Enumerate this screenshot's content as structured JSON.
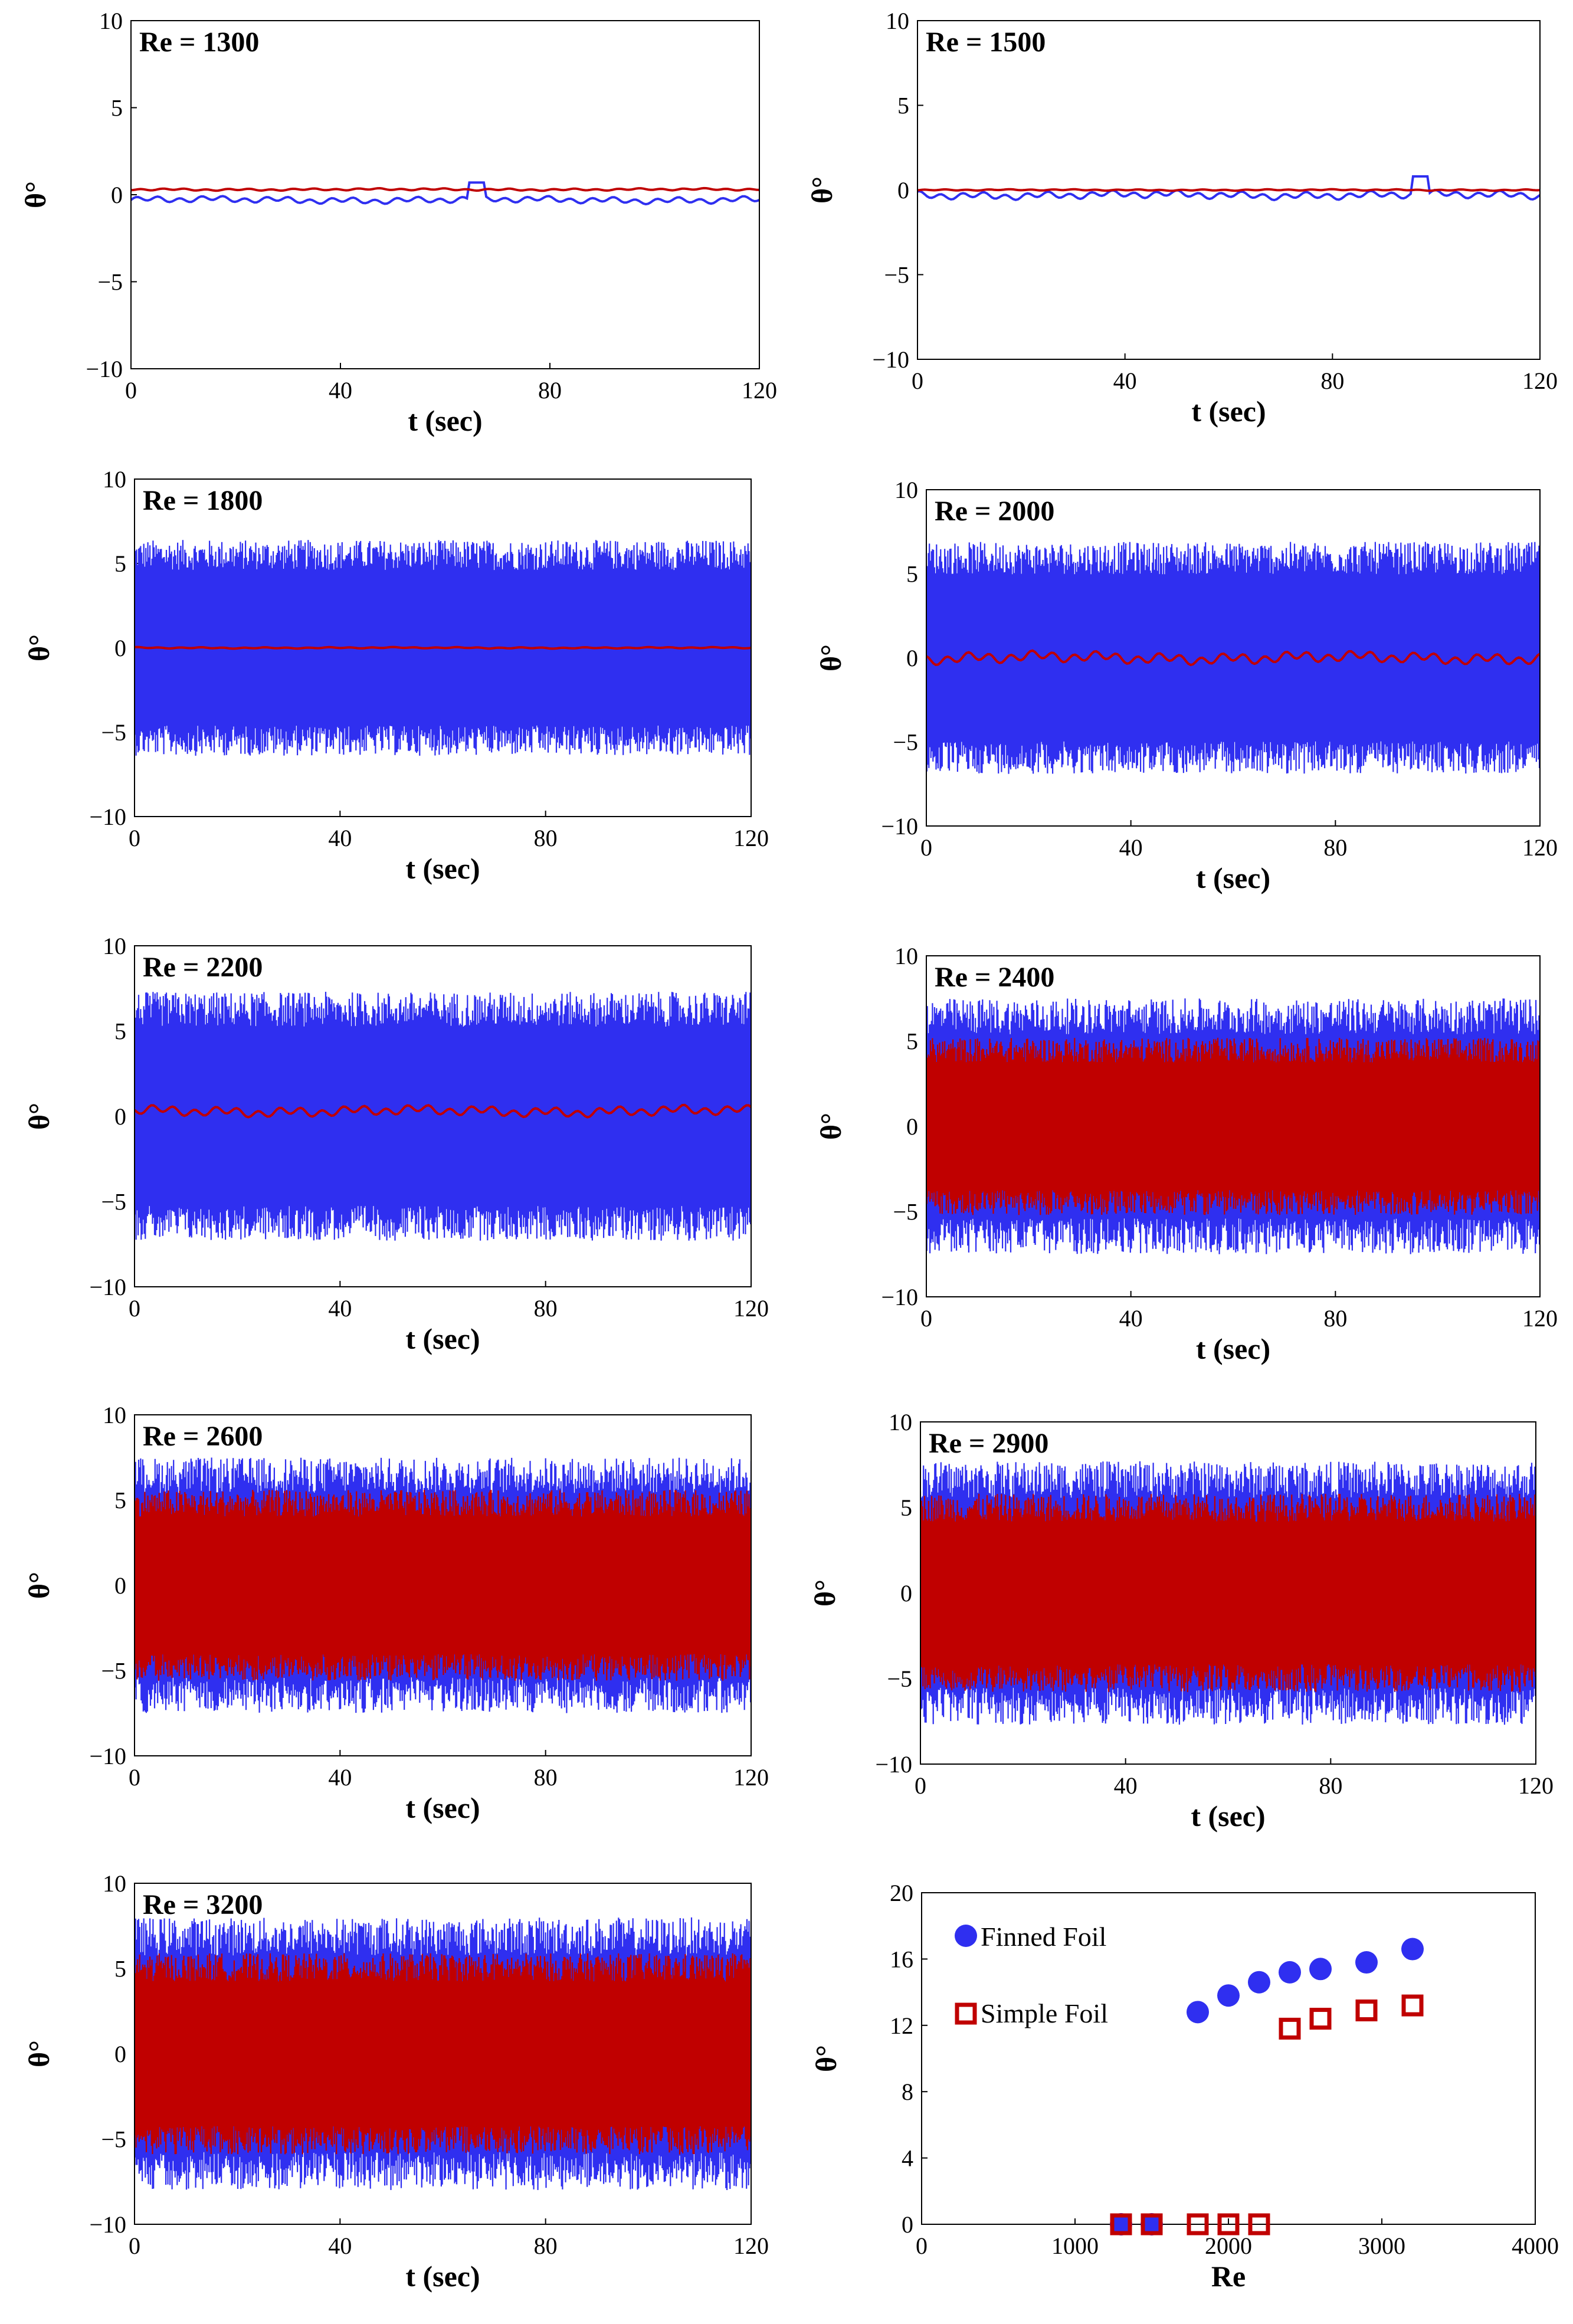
{
  "colors": {
    "finned": "#2f2ff0",
    "simple": "#c00000",
    "axis": "#000000"
  },
  "chart_data": [
    {
      "type": "line",
      "panel": "ts1",
      "title": "Re = 1300",
      "xlabel": "t (sec)",
      "ylabel": "θ°",
      "xlim": [
        0,
        120
      ],
      "ylim": [
        -10,
        10
      ],
      "xticks": [
        0,
        40,
        80,
        120
      ],
      "yticks": [
        -10,
        -5,
        0,
        5,
        10
      ],
      "series": [
        {
          "name": "Finned Foil",
          "color": "#2f2ff0",
          "mean": -0.3,
          "amp": 0.25,
          "spike_t": 66,
          "spike_v": 0.7
        },
        {
          "name": "Simple Foil",
          "color": "#c00000",
          "mean": 0.3,
          "amp": 0.08
        }
      ]
    },
    {
      "type": "line",
      "panel": "ts2",
      "title": "Re = 1500",
      "xlabel": "t (sec)",
      "ylabel": "θ°",
      "xlim": [
        0,
        120
      ],
      "ylim": [
        -10,
        10
      ],
      "xticks": [
        0,
        40,
        80,
        120
      ],
      "yticks": [
        -10,
        -5,
        0,
        5,
        10
      ],
      "series": [
        {
          "name": "Finned Foil",
          "color": "#2f2ff0",
          "mean": -0.3,
          "amp": 0.3,
          "spike_t": 97,
          "spike_v": 0.8
        },
        {
          "name": "Simple Foil",
          "color": "#c00000",
          "mean": 0.0,
          "amp": 0.05
        }
      ]
    },
    {
      "type": "line",
      "panel": "ts3",
      "title": "Re = 1800",
      "xlabel": "t (sec)",
      "ylabel": "θ°",
      "xlim": [
        0,
        120
      ],
      "ylim": [
        -10,
        10
      ],
      "xticks": [
        0,
        40,
        80,
        120
      ],
      "yticks": [
        -10,
        -5,
        0,
        5,
        10
      ],
      "series": [
        {
          "name": "Finned Foil",
          "color": "#2f2ff0",
          "mean": 0.0,
          "amp": 6.4
        },
        {
          "name": "Simple Foil",
          "color": "#c00000",
          "mean": 0.0,
          "amp": 0.05
        }
      ]
    },
    {
      "type": "line",
      "panel": "ts4",
      "title": "Re = 2000",
      "xlabel": "t (sec)",
      "ylabel": "θ°",
      "xlim": [
        0,
        120
      ],
      "ylim": [
        -10,
        10
      ],
      "xticks": [
        0,
        40,
        80,
        120
      ],
      "yticks": [
        -10,
        -5,
        0,
        5,
        10
      ],
      "series": [
        {
          "name": "Finned Foil",
          "color": "#2f2ff0",
          "mean": 0.0,
          "amp": 6.9
        },
        {
          "name": "Simple Foil",
          "color": "#c00000",
          "mean": 0.0,
          "amp": 0.45
        }
      ]
    },
    {
      "type": "line",
      "panel": "ts5",
      "title": "Re = 2200",
      "xlabel": "t (sec)",
      "ylabel": "θ°",
      "xlim": [
        0,
        120
      ],
      "ylim": [
        -10,
        10
      ],
      "xticks": [
        0,
        40,
        80,
        120
      ],
      "yticks": [
        -10,
        -5,
        0,
        5,
        10
      ],
      "series": [
        {
          "name": "Finned Foil",
          "color": "#2f2ff0",
          "mean": 0.0,
          "amp": 7.3
        },
        {
          "name": "Simple Foil",
          "color": "#c00000",
          "mean": 0.3,
          "amp": 0.4
        }
      ]
    },
    {
      "type": "line",
      "panel": "ts6",
      "title": "Re = 2400",
      "xlabel": "t (sec)",
      "ylabel": "θ°",
      "xlim": [
        0,
        120
      ],
      "ylim": [
        -10,
        10
      ],
      "xticks": [
        0,
        40,
        80,
        120
      ],
      "yticks": [
        -10,
        -5,
        0,
        5,
        10
      ],
      "series": [
        {
          "name": "Finned Foil",
          "color": "#2f2ff0",
          "mean": 0.0,
          "amp": 7.5
        },
        {
          "name": "Simple Foil",
          "color": "#c00000",
          "mean": 0.0,
          "amp": 5.2
        }
      ]
    },
    {
      "type": "line",
      "panel": "ts7",
      "title": "Re = 2600",
      "xlabel": "t (sec)",
      "ylabel": "θ°",
      "xlim": [
        0,
        120
      ],
      "ylim": [
        -10,
        10
      ],
      "xticks": [
        0,
        40,
        80,
        120
      ],
      "yticks": [
        -10,
        -5,
        0,
        5,
        10
      ],
      "series": [
        {
          "name": "Finned Foil",
          "color": "#2f2ff0",
          "mean": 0.0,
          "amp": 7.5
        },
        {
          "name": "Simple Foil",
          "color": "#c00000",
          "mean": 0.0,
          "amp": 5.6
        }
      ]
    },
    {
      "type": "line",
      "panel": "ts8",
      "title": "Re = 2900",
      "xlabel": "t (sec)",
      "ylabel": "θ°",
      "xlim": [
        0,
        120
      ],
      "ylim": [
        -10,
        10
      ],
      "xticks": [
        0,
        40,
        80,
        120
      ],
      "yticks": [
        -10,
        -5,
        0,
        5,
        10
      ],
      "series": [
        {
          "name": "Finned Foil",
          "color": "#2f2ff0",
          "mean": 0.0,
          "amp": 7.7
        },
        {
          "name": "Simple Foil",
          "color": "#c00000",
          "mean": 0.0,
          "amp": 5.8
        }
      ]
    },
    {
      "type": "line",
      "panel": "ts9",
      "title": "Re = 3200",
      "xlabel": "t (sec)",
      "ylabel": "θ°",
      "xlim": [
        0,
        120
      ],
      "ylim": [
        -10,
        10
      ],
      "xticks": [
        0,
        40,
        80,
        120
      ],
      "yticks": [
        -10,
        -5,
        0,
        5,
        10
      ],
      "series": [
        {
          "name": "Finned Foil",
          "color": "#2f2ff0",
          "mean": 0.0,
          "amp": 8.0
        },
        {
          "name": "Simple Foil",
          "color": "#c00000",
          "mean": 0.0,
          "amp": 5.9
        }
      ]
    },
    {
      "type": "scatter",
      "panel": "summary",
      "title": "",
      "xlabel": "Re",
      "ylabel": "θ°",
      "xlim": [
        0,
        4000
      ],
      "ylim": [
        0,
        20
      ],
      "xticks": [
        0,
        1000,
        2000,
        3000,
        4000
      ],
      "yticks": [
        0,
        4,
        8,
        12,
        16,
        20
      ],
      "legend_position": "top-left",
      "series": [
        {
          "name": "Finned Foil",
          "marker": "filled-circle",
          "color": "#2f2ff0",
          "x": [
            1300,
            1500,
            1800,
            2000,
            2200,
            2400,
            2600,
            2900,
            3200
          ],
          "y": [
            0,
            0,
            12.8,
            13.8,
            14.6,
            15.2,
            15.4,
            15.8,
            16.6
          ]
        },
        {
          "name": "Simple Foil",
          "marker": "open-square",
          "color": "#c00000",
          "x": [
            1300,
            1500,
            1800,
            2000,
            2200,
            2400,
            2600,
            2900,
            3200
          ],
          "y": [
            0,
            0,
            0,
            0,
            0,
            11.8,
            12.4,
            12.9,
            13.2
          ]
        }
      ]
    }
  ]
}
